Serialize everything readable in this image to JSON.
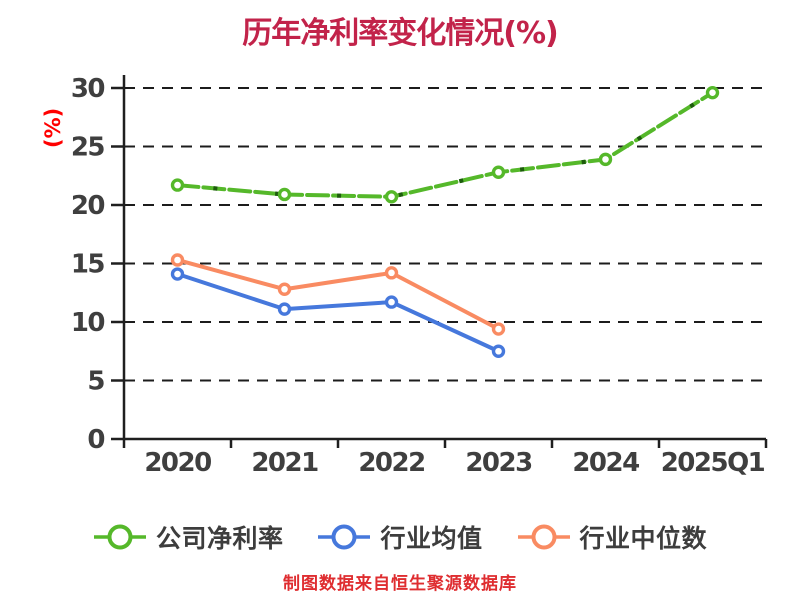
{
  "title": "历年净利率变化情况(%)",
  "y_axis_unit": "(%)",
  "footer": "制图数据来自恒生聚源数据库",
  "colors": {
    "background": "#ffffff",
    "title": "#c2234a",
    "footer": "#df2d30",
    "y_axis_unit": "#ff0000",
    "axis": "#1f1f1f",
    "gridline": "#1c1c1c",
    "tick_label": "#3f3f3f",
    "legend_label": "#3d3d3d"
  },
  "chart_data": {
    "type": "line",
    "title": "历年净利率变化情况(%)",
    "categories": [
      "2020",
      "2021",
      "2022",
      "2023",
      "2024",
      "2025Q1"
    ],
    "series": [
      {
        "name": "公司净利率",
        "color": "#55b82a",
        "dash_overlay_color": "#1d5c0c",
        "line_style": "dashed",
        "values": [
          21.7,
          20.9,
          20.7,
          22.8,
          23.9,
          29.6
        ]
      },
      {
        "name": "行业均值",
        "color": "#4678dc",
        "line_style": "solid",
        "values": [
          14.1,
          11.1,
          11.7,
          7.5
        ]
      },
      {
        "name": "行业中位数",
        "color": "#f98b62",
        "line_style": "solid",
        "values": [
          15.3,
          12.8,
          14.2,
          9.4
        ]
      }
    ],
    "xlabel": "",
    "ylabel": "(%)",
    "ylim": [
      0,
      30
    ],
    "yticks": [
      0,
      5,
      10,
      15,
      20,
      25,
      30
    ],
    "grid": "horizontal-dashed",
    "legend_position": "bottom",
    "marker": "circle-white-fill"
  }
}
